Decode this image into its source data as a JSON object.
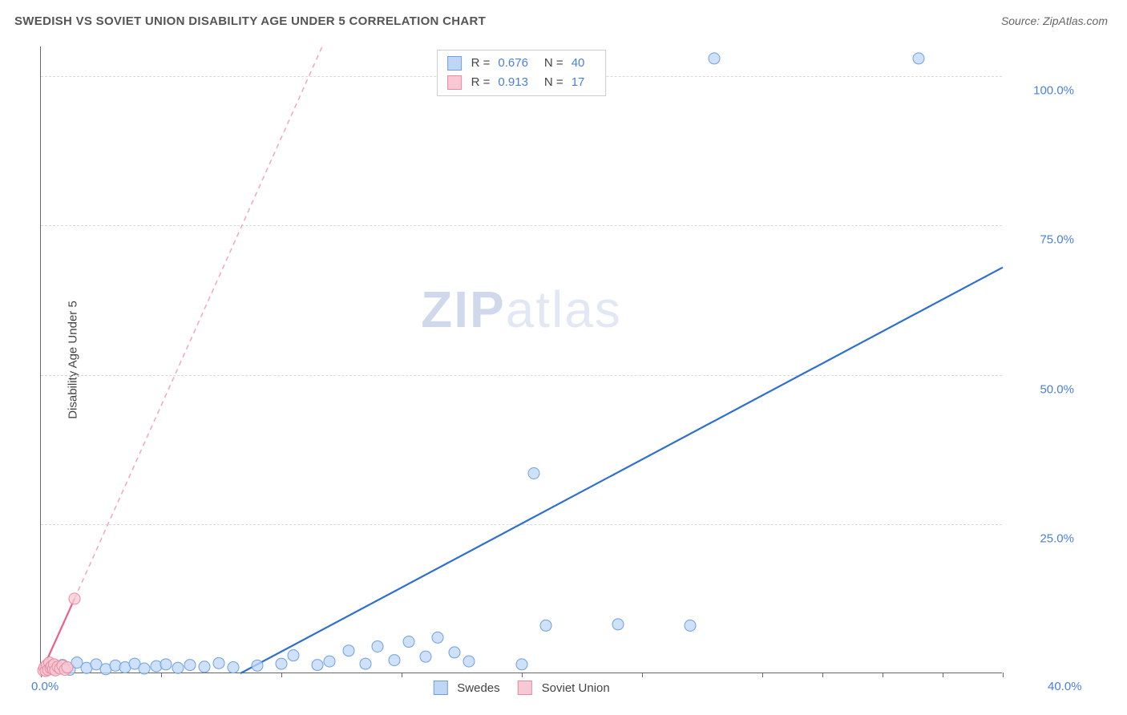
{
  "header": {
    "title": "SWEDISH VS SOVIET UNION DISABILITY AGE UNDER 5 CORRELATION CHART",
    "source_prefix": "Source: ",
    "source_name": "ZipAtlas.com"
  },
  "chart": {
    "type": "scatter",
    "y_label": "Disability Age Under 5",
    "watermark_bold": "ZIP",
    "watermark_rest": "atlas",
    "background_color": "#ffffff",
    "grid_color": "#d9d9d9",
    "axis_color": "#666666",
    "text_color": "#444444",
    "value_color": "#4a7fd8",
    "xlim": [
      0,
      40
    ],
    "ylim": [
      0,
      105
    ],
    "x_ticks": [
      0,
      5,
      10,
      15,
      20,
      25,
      30,
      32.5,
      35,
      37.5,
      40
    ],
    "x_tick_labels": {
      "0": "0.0%",
      "40": "40.0%"
    },
    "y_ticks": [
      25,
      50,
      75,
      100
    ],
    "y_tick_labels": {
      "25": "25.0%",
      "50": "50.0%",
      "75": "75.0%",
      "100": "100.0%"
    },
    "series": [
      {
        "name": "Swedes",
        "marker_fill": "#bfd7f5",
        "marker_stroke": "#6ea0e0",
        "marker_radius": 7,
        "line_color": "#2f6fd0",
        "line_width": 2.2,
        "line_dash": "none",
        "trend_from": [
          8.3,
          0
        ],
        "trend_to": [
          40,
          68
        ],
        "stats": {
          "R": "0.676",
          "N": "40"
        },
        "points": [
          [
            0.3,
            1.2
          ],
          [
            0.6,
            0.8
          ],
          [
            0.9,
            1.4
          ],
          [
            1.2,
            0.6
          ],
          [
            1.5,
            1.8
          ],
          [
            1.9,
            0.9
          ],
          [
            2.3,
            1.5
          ],
          [
            2.7,
            0.7
          ],
          [
            3.1,
            1.3
          ],
          [
            3.5,
            1.0
          ],
          [
            3.9,
            1.6
          ],
          [
            4.3,
            0.8
          ],
          [
            4.8,
            1.2
          ],
          [
            5.2,
            1.5
          ],
          [
            5.7,
            0.9
          ],
          [
            6.2,
            1.4
          ],
          [
            6.8,
            1.1
          ],
          [
            7.4,
            1.7
          ],
          [
            8.0,
            1.0
          ],
          [
            9.0,
            1.3
          ],
          [
            10.0,
            1.6
          ],
          [
            10.5,
            3.0
          ],
          [
            11.5,
            1.4
          ],
          [
            12.0,
            2.0
          ],
          [
            12.8,
            3.8
          ],
          [
            13.5,
            1.6
          ],
          [
            14.0,
            4.5
          ],
          [
            14.7,
            2.2
          ],
          [
            15.3,
            5.3
          ],
          [
            16.0,
            2.8
          ],
          [
            16.5,
            6.0
          ],
          [
            17.2,
            3.5
          ],
          [
            17.8,
            2.0
          ],
          [
            20.0,
            1.5
          ],
          [
            21.0,
            8.0
          ],
          [
            24.0,
            8.2
          ],
          [
            27.0,
            8.0
          ],
          [
            20.5,
            33.5
          ],
          [
            28.0,
            103.0
          ],
          [
            36.5,
            103.0
          ]
        ]
      },
      {
        "name": "Soviet Union",
        "marker_fill": "#f7c9d4",
        "marker_stroke": "#e88aa2",
        "marker_radius": 7,
        "line_color": "#ef5f85",
        "line_width": 2.2,
        "line_dash": "none",
        "extrap_color": "#f2a7bb",
        "extrap_dash": "6,5",
        "trend_from": [
          0,
          0
        ],
        "trend_to": [
          1.4,
          12.5
        ],
        "extrap_from": [
          1.4,
          12.5
        ],
        "extrap_to": [
          11.7,
          105
        ],
        "stats": {
          "R": "0.913",
          "N": "17"
        },
        "points": [
          [
            0.1,
            0.5
          ],
          [
            0.15,
            1.0
          ],
          [
            0.2,
            0.4
          ],
          [
            0.25,
            1.4
          ],
          [
            0.3,
            0.6
          ],
          [
            0.35,
            1.8
          ],
          [
            0.4,
            0.9
          ],
          [
            0.45,
            1.2
          ],
          [
            0.5,
            0.7
          ],
          [
            0.55,
            1.5
          ],
          [
            0.6,
            0.5
          ],
          [
            0.7,
            1.1
          ],
          [
            0.8,
            0.8
          ],
          [
            0.9,
            1.3
          ],
          [
            1.0,
            0.6
          ],
          [
            1.1,
            1.0
          ],
          [
            1.4,
            12.5
          ]
        ]
      }
    ],
    "stats_box": {
      "R_label": "R =",
      "N_label": "N ="
    },
    "legend": [
      {
        "label": "Swedes",
        "fill": "#bfd7f5",
        "stroke": "#6ea0e0"
      },
      {
        "label": "Soviet Union",
        "fill": "#f7c9d4",
        "stroke": "#e88aa2"
      }
    ]
  }
}
